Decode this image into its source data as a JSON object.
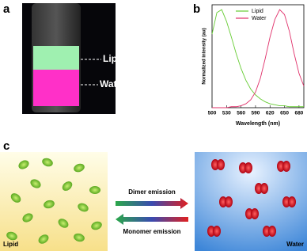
{
  "panel_a": {
    "letter": "a",
    "labels": [
      "Lipid",
      "Water"
    ]
  },
  "chart_data": {
    "type": "line",
    "letter": "b",
    "xlabel": "Wavelength (nm)",
    "ylabel": "Normalized intensity (au)",
    "x": [
      500,
      510,
      520,
      530,
      540,
      550,
      560,
      570,
      580,
      590,
      600,
      610,
      620,
      630,
      640,
      650,
      660,
      670,
      680,
      690
    ],
    "series": [
      {
        "name": "Lipid",
        "color": "#66cc33",
        "values": [
          0.75,
          0.97,
          1.0,
          0.88,
          0.72,
          0.55,
          0.4,
          0.28,
          0.19,
          0.13,
          0.09,
          0.06,
          0.04,
          0.03,
          0.02,
          0.02,
          0.01,
          0.01,
          0.01,
          0.01
        ]
      },
      {
        "name": "Water",
        "color": "#e0306a",
        "values": [
          0,
          0,
          0,
          0,
          0.01,
          0.01,
          0.02,
          0.04,
          0.08,
          0.16,
          0.3,
          0.5,
          0.72,
          0.9,
          1.0,
          0.95,
          0.78,
          0.55,
          0.35,
          0.22
        ]
      }
    ],
    "xlim": [
      500,
      690
    ],
    "xticks": [
      500,
      530,
      560,
      590,
      620,
      650,
      680
    ],
    "ylim": [
      0,
      1.05
    ]
  },
  "panel_c": {
    "letter": "c",
    "left": "Lipid",
    "right": "Water",
    "top_arrow": "Dimer emission",
    "bottom_arrow": "Monomer emission"
  }
}
